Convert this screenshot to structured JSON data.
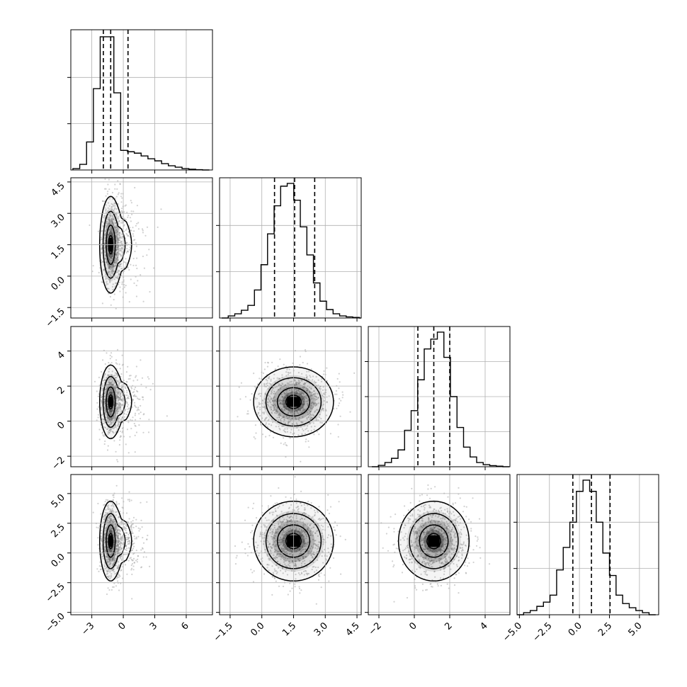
{
  "chart_data": {
    "type": "corner",
    "grid": true,
    "params": [
      {
        "range": [
          -5,
          8.5
        ],
        "ticks": [
          -3,
          0,
          3,
          6
        ],
        "tick_labels": [
          "−3",
          "0",
          "3",
          "6"
        ],
        "hist": {
          "bin_start": -4.8,
          "bin_width": 0.65,
          "counts": [
            0.01,
            0.04,
            0.2,
            0.58,
            0.95,
            0.95,
            0.55,
            0.14,
            0.13,
            0.12,
            0.1,
            0.08,
            0.065,
            0.045,
            0.03,
            0.02,
            0.01,
            0.005,
            0.002,
            0.0
          ]
        },
        "quantiles": [
          -1.9,
          -1.2,
          0.45
        ],
        "hist_ticks": [
          0.33,
          0.66
        ]
      },
      {
        "range": [
          -2.0,
          4.7
        ],
        "ticks": [
          -1.5,
          0.0,
          1.5,
          3.0,
          4.5
        ],
        "tick_labels": [
          "−1.5",
          "0.0",
          "1.5",
          "3.0",
          "4.5"
        ],
        "hist": {
          "bin_start": -1.9,
          "bin_width": 0.31,
          "counts": [
            0.0,
            0.015,
            0.03,
            0.055,
            0.09,
            0.2,
            0.38,
            0.6,
            0.8,
            0.94,
            0.96,
            0.84,
            0.65,
            0.45,
            0.25,
            0.12,
            0.06,
            0.03,
            0.015,
            0.008,
            0.004,
            0.0
          ]
        },
        "quantiles": [
          0.6,
          1.55,
          2.5
        ],
        "hist_ticks": [
          0.33,
          0.66
        ]
      },
      {
        "range": [
          -2.6,
          5.4
        ],
        "ticks": [
          -2,
          0,
          2,
          4
        ],
        "tick_labels": [
          "−2",
          "0",
          "2",
          "4"
        ],
        "hist": {
          "bin_start": -2.4,
          "bin_width": 0.37,
          "counts": [
            0.0,
            0.01,
            0.03,
            0.06,
            0.12,
            0.26,
            0.4,
            0.62,
            0.84,
            0.91,
            0.96,
            0.78,
            0.5,
            0.28,
            0.14,
            0.07,
            0.03,
            0.015,
            0.008,
            0.004,
            0.0
          ]
        },
        "quantiles": [
          0.2,
          1.1,
          2.0
        ],
        "hist_ticks": [
          0.25,
          0.5,
          0.75
        ]
      },
      {
        "range": [
          -5.2,
          6.6
        ],
        "ticks": [
          -5.0,
          -2.5,
          0.0,
          2.5,
          5.0
        ],
        "tick_labels": [
          "−5.0",
          "−2.5",
          "0.0",
          "2.5",
          "5.0"
        ],
        "hist": {
          "bin_start": -5.2,
          "bin_width": 0.55,
          "counts": [
            0.0,
            0.015,
            0.03,
            0.06,
            0.09,
            0.14,
            0.32,
            0.48,
            0.66,
            0.88,
            0.96,
            0.88,
            0.66,
            0.44,
            0.28,
            0.14,
            0.08,
            0.05,
            0.03,
            0.015,
            0.0
          ]
        },
        "quantiles": [
          -0.55,
          1.0,
          2.55
        ],
        "hist_ticks": [
          0.33,
          0.66
        ]
      }
    ],
    "pairs": [
      {
        "row": 1,
        "col": 0,
        "center": [
          -1.2,
          1.5
        ],
        "spread": [
          0.5,
          1.1
        ],
        "density_max": 1.0
      },
      {
        "row": 2,
        "col": 0,
        "center": [
          -1.2,
          1.1
        ],
        "spread": [
          0.5,
          1.0
        ],
        "density_max": 1.0
      },
      {
        "row": 2,
        "col": 1,
        "center": [
          1.5,
          1.1
        ],
        "spread": [
          0.9,
          0.95
        ],
        "density_max": 1.0
      },
      {
        "row": 3,
        "col": 0,
        "center": [
          -1.2,
          1.0
        ],
        "spread": [
          0.5,
          1.6
        ],
        "density_max": 1.0
      },
      {
        "row": 3,
        "col": 1,
        "center": [
          1.5,
          1.0
        ],
        "spread": [
          0.9,
          1.6
        ],
        "density_max": 1.0
      },
      {
        "row": 3,
        "col": 2,
        "center": [
          1.1,
          1.0
        ],
        "spread": [
          0.95,
          1.6
        ],
        "density_max": 1.0
      }
    ]
  }
}
